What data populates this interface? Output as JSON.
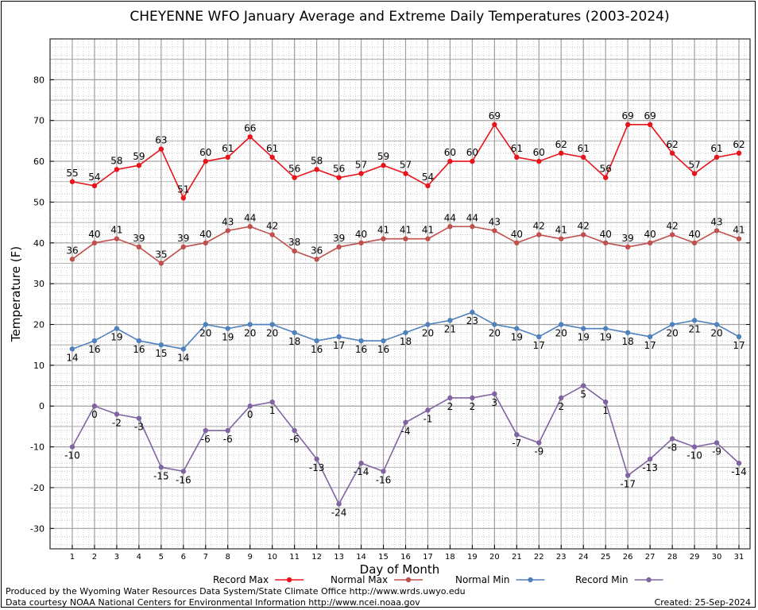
{
  "chart_data": {
    "type": "line",
    "title": "CHEYENNE WFO January Average and Extreme Daily Temperatures (2003-2024)",
    "xlabel": "Day of Month",
    "ylabel": "Temperature (F)",
    "x": [
      1,
      2,
      3,
      4,
      5,
      6,
      7,
      8,
      9,
      10,
      11,
      12,
      13,
      14,
      15,
      16,
      17,
      18,
      19,
      20,
      21,
      22,
      23,
      24,
      25,
      26,
      27,
      28,
      29,
      30,
      31
    ],
    "xlim": [
      0,
      31.5
    ],
    "ylim": [
      -35,
      90
    ],
    "yticks": [
      -30,
      -20,
      -10,
      0,
      10,
      20,
      30,
      40,
      50,
      60,
      70,
      80
    ],
    "grid": true,
    "legend_position": "bottom",
    "series": [
      {
        "name": "Record Max",
        "color": "#e8141c",
        "values": [
          55,
          54,
          58,
          59,
          63,
          51,
          60,
          61,
          66,
          61,
          56,
          58,
          56,
          57,
          59,
          57,
          54,
          60,
          60,
          69,
          61,
          60,
          62,
          61,
          56,
          69,
          69,
          62,
          57,
          61,
          62
        ]
      },
      {
        "name": "Normal Max",
        "color": "#c0504d",
        "values": [
          36,
          40,
          41,
          39,
          35,
          39,
          40,
          43,
          44,
          42,
          38,
          36,
          39,
          40,
          41,
          41,
          41,
          44,
          44,
          43,
          40,
          42,
          41,
          42,
          40,
          39,
          40,
          42,
          40,
          43,
          41
        ]
      },
      {
        "name": "Normal Min",
        "color": "#4f81bd",
        "values": [
          14,
          16,
          19,
          16,
          15,
          14,
          20,
          19,
          20,
          20,
          18,
          16,
          17,
          16,
          16,
          18,
          20,
          21,
          23,
          20,
          19,
          17,
          20,
          19,
          19,
          18,
          17,
          20,
          21,
          20,
          17
        ]
      },
      {
        "name": "Record Min",
        "color": "#8064a2",
        "values": [
          -10,
          0,
          -2,
          -3,
          -15,
          -16,
          -6,
          -6,
          0,
          1,
          -6,
          -13,
          -24,
          -14,
          -16,
          -4,
          -1,
          2,
          2,
          3,
          -7,
          -9,
          2,
          5,
          1,
          -17,
          -13,
          -8,
          -10,
          -9,
          -14
        ]
      }
    ]
  },
  "footer": {
    "produced_by": "Produced by the Wyoming Water Resources Data System/State Climate Office http://www.wrds.uwyo.edu",
    "data_courtesy": "Data courtesy NOAA National Centers for Environmental Information http://www.ncei.noaa.gov",
    "created": "Created:  25-Sep-2024"
  }
}
